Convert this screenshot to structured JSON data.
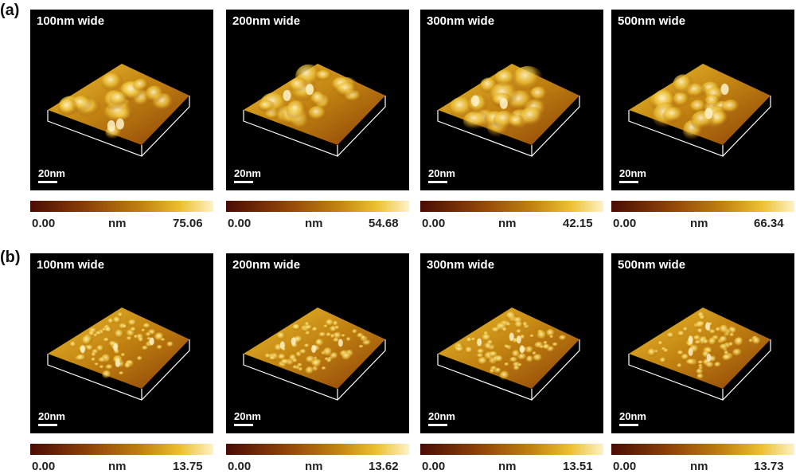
{
  "rows": [
    {
      "label": "(a)",
      "panels": [
        {
          "title": "100nm wide",
          "scale_label": "20nm",
          "cb_min": "0.00",
          "cb_unit": "nm",
          "cb_max": "75.06"
        },
        {
          "title": "200nm wide",
          "scale_label": "20nm",
          "cb_min": "0.00",
          "cb_unit": "nm",
          "cb_max": "54.68"
        },
        {
          "title": "300nm wide",
          "scale_label": "20nm",
          "cb_min": "0.00",
          "cb_unit": "nm",
          "cb_max": "42.15"
        },
        {
          "title": "500nm wide",
          "scale_label": "20nm",
          "cb_min": "0.00",
          "cb_unit": "nm",
          "cb_max": "66.34"
        }
      ]
    },
    {
      "label": "(b)",
      "panels": [
        {
          "title": "100nm wide",
          "scale_label": "20nm",
          "cb_min": "0.00",
          "cb_unit": "nm",
          "cb_max": "13.75"
        },
        {
          "title": "200nm wide",
          "scale_label": "20nm",
          "cb_min": "0.00",
          "cb_unit": "nm",
          "cb_max": "13.62"
        },
        {
          "title": "300nm wide",
          "scale_label": "20nm",
          "cb_min": "0.00",
          "cb_unit": "nm",
          "cb_max": "13.51"
        },
        {
          "title": "500nm wide",
          "scale_label": "20nm",
          "cb_min": "0.00",
          "cb_unit": "nm",
          "cb_max": "13.73"
        }
      ]
    }
  ],
  "colors": {
    "background": "#000000",
    "colormap": [
      "#4a0c05",
      "#8a3f08",
      "#c08010",
      "#ecc030",
      "#fff2c8"
    ]
  }
}
